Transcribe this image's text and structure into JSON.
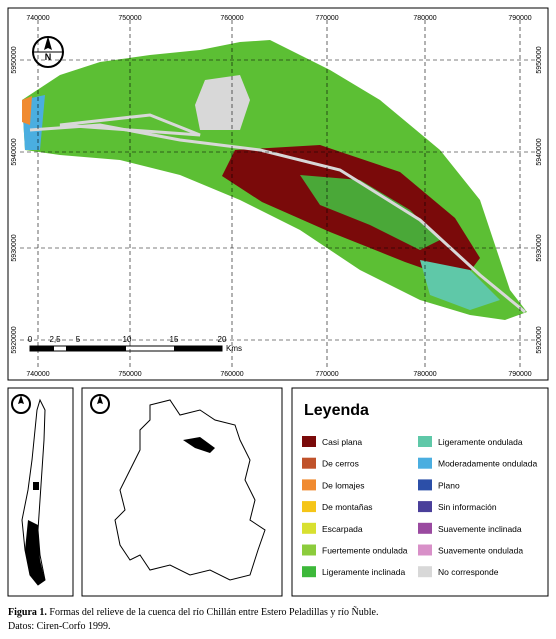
{
  "map": {
    "x_labels": [
      "740000",
      "750000",
      "760000",
      "770000",
      "780000",
      "790000"
    ],
    "y_labels": [
      "5950000",
      "5940000",
      "5930000",
      "5920000"
    ],
    "north": "N",
    "scale_labels": [
      "0",
      "2,5",
      "5",
      "10",
      "15",
      "20"
    ],
    "scale_unit": "Kms"
  },
  "legend": {
    "title": "Leyenda",
    "items": [
      {
        "label": "Casi plana",
        "color": "#7a0a0a"
      },
      {
        "label": "De cerros",
        "color": "#c0522a"
      },
      {
        "label": "De lomajes",
        "color": "#f08a30"
      },
      {
        "label": "De montañas",
        "color": "#f5c518"
      },
      {
        "label": "Escarpada",
        "color": "#d8e030"
      },
      {
        "label": "Fuertemente ondulada",
        "color": "#8ccc3c"
      },
      {
        "label": "Ligeramente inclinada",
        "color": "#3db83a"
      },
      {
        "label": "Ligeramente ondulada",
        "color": "#5fc8a8"
      },
      {
        "label": "Moderadamente ondulada",
        "color": "#4aaee0"
      },
      {
        "label": "Plano",
        "color": "#2c4fa8"
      },
      {
        "label": "Sin información",
        "color": "#4a3f9a"
      },
      {
        "label": "Suavemente inclinada",
        "color": "#9a4aa0"
      },
      {
        "label": "Suavemente ondulada",
        "color": "#d890c8"
      },
      {
        "label": "No corresponde",
        "color": "#d8d8d8"
      }
    ]
  },
  "caption": {
    "figure_label": "Figura 1.",
    "text": "Formas del relieve de la cuenca del río Chillán entre Estero Peladillas y río Ñuble.",
    "source": "Datos: Ciren-Corfo 1999."
  }
}
